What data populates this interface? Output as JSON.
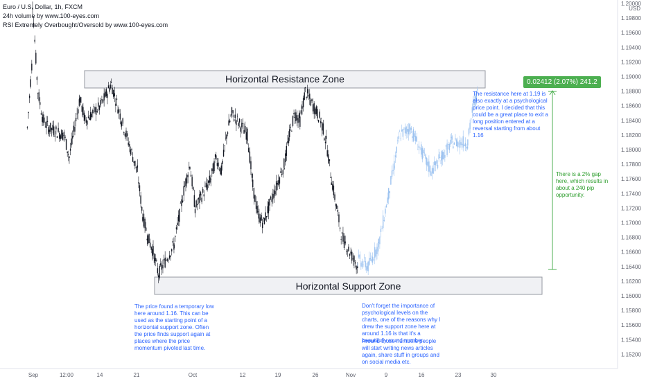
{
  "legend": {
    "symbol_line": "Euro / U.S. Dollar, 1h, FXCM",
    "volume_line": "24h volume by www.100-eyes.com",
    "rsi_line": "RSI Extremely Overbought/Oversold by www.100-eyes.com"
  },
  "currency": "USD",
  "annotations": {
    "resistance_zone": "Horizontal Resistance Zone",
    "support_zone": "Horizontal Support Zone",
    "measure_badge": "0.02412 (2.07%) 241.2",
    "resistance_note": "The resistance here at 1.19 is also exactly at a psychological price point. I decided that this could be a great place to exit a long position entered at a reversal starting from about 1.16",
    "gap_note": "There is a 2% gap here, which results in about a 240 pip opportunity.",
    "support_note": "The price found a temporary low here around 1.16. This can be used as the starting point of a horizontal support zone. Often the price finds support again at places where the price momentum pivoted last time.",
    "psych_note_1": "Don't forget the importance of psychological levels on the charts, one of the reasons why I drew the support zone here at around 1.16 is that it's a beautifully round number.",
    "psych_note_2": "Around those numbers people will start writing news articles again, share stuff in groups and on social media etc."
  },
  "colors": {
    "candles": "#131722",
    "forecast": "#9dc3f0",
    "zone_fill": "#f0f1f4",
    "zone_border": "#9598a1",
    "measure_green": "#4caf50",
    "note_blue": "#2962ff",
    "note_green": "#2e9e2e"
  },
  "chart_data": {
    "type": "line",
    "title": "Euro / U.S. Dollar, 1h, FXCM",
    "ylabel": "USD",
    "ylim": [
      1.151,
      1.2
    ],
    "y_ticks": [
      "1.20000",
      "1.19800",
      "1.19600",
      "1.19400",
      "1.19200",
      "1.19000",
      "1.18800",
      "1.18600",
      "1.18400",
      "1.18200",
      "1.18000",
      "1.17800",
      "1.17600",
      "1.17400",
      "1.17200",
      "1.17000",
      "1.16800",
      "1.16600",
      "1.16400",
      "1.16200",
      "1.16000",
      "1.15800",
      "1.15600",
      "1.15400",
      "1.15200"
    ],
    "x_ticks": [
      "Sep",
      "12:00",
      "14",
      "21",
      "Oct",
      "12",
      "19",
      "26",
      "Nov",
      "9",
      "16",
      "23",
      "30"
    ],
    "series": [
      {
        "x": [
          "Aug 31",
          "Sep 1",
          "Sep 1",
          "Sep 2",
          "Sep 3",
          "Sep 4",
          "Sep 7",
          "Sep 8",
          "Sep 10",
          "Sep 11",
          "Sep 14",
          "Sep 16",
          "Sep 18",
          "Sep 21",
          "Sep 22",
          "Sep 23",
          "Sep 24",
          "Sep 25",
          "Sep 28",
          "Sep 29",
          "Sep 30",
          "Oct 1",
          "Oct 2",
          "Oct 5",
          "Oct 6",
          "Oct 7",
          "Oct 8",
          "Oct 9",
          "Oct 12",
          "Oct 13",
          "Oct 14",
          "Oct 15",
          "Oct 16",
          "Oct 19",
          "Oct 20",
          "Oct 21",
          "Oct 22",
          "Oct 23",
          "Oct 26",
          "Oct 27",
          "Oct 28",
          "Oct 29",
          "Oct 30",
          "Nov 2"
        ],
        "values": [
          1.183,
          1.193,
          1.2,
          1.188,
          1.184,
          1.183,
          1.182,
          1.179,
          1.187,
          1.184,
          1.186,
          1.189,
          1.184,
          1.177,
          1.171,
          1.168,
          1.166,
          1.163,
          1.167,
          1.171,
          1.175,
          1.178,
          1.172,
          1.176,
          1.179,
          1.177,
          1.182,
          1.185,
          1.182,
          1.175,
          1.171,
          1.17,
          1.172,
          1.178,
          1.182,
          1.185,
          1.184,
          1.188,
          1.184,
          1.181,
          1.176,
          1.172,
          1.168,
          1.164
        ]
      },
      {
        "x": [
          "Nov 2",
          "Nov 4",
          "Nov 6",
          "Nov 9",
          "Nov 10",
          "Nov 12",
          "Nov 16",
          "Nov 18",
          "Nov 20",
          "Nov 23",
          "Nov 24",
          "Nov 25"
        ],
        "values": [
          1.165,
          1.164,
          1.167,
          1.178,
          1.182,
          1.183,
          1.177,
          1.179,
          1.181,
          1.181,
          1.186,
          1.188
        ]
      }
    ],
    "grid": false,
    "legend": "top-left"
  }
}
